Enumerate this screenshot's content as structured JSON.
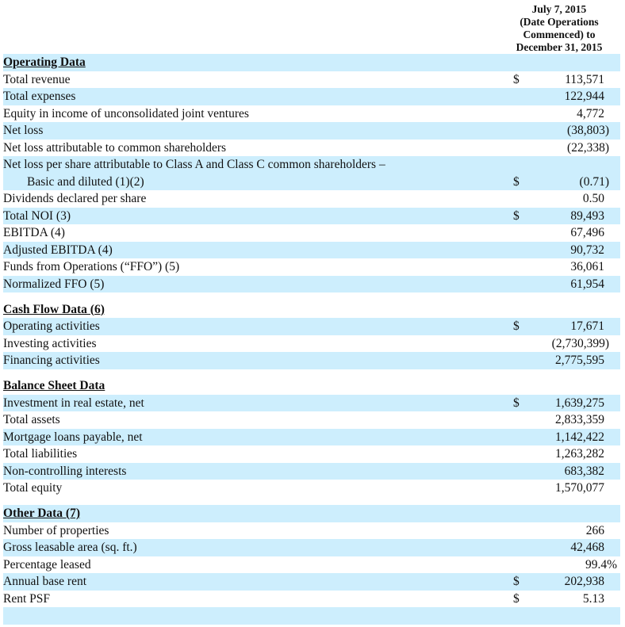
{
  "header": {
    "period_lines": [
      "July 7, 2015",
      "(Date Operations",
      "Commenced) to",
      "December 31, 2015"
    ]
  },
  "sections": [
    {
      "title": "Operating Data",
      "shaded": true,
      "rows": [
        {
          "label": "Total revenue",
          "currency": "$",
          "value": "113,571",
          "shaded": false
        },
        {
          "label": "Total expenses",
          "value": "122,944",
          "shaded": true
        },
        {
          "label": "Equity in income of unconsolidated joint ventures",
          "value": "4,772",
          "shaded": false
        },
        {
          "label": "Net loss",
          "value": "(38,803)",
          "shaded": true
        },
        {
          "label": "Net loss attributable to common shareholders",
          "value": "(22,338)",
          "shaded": false
        },
        {
          "label": "Net loss per share attributable to Class A and Class C common shareholders –",
          "label2": "Basic and diluted (1)(2)",
          "currency": "$",
          "value": "(0.71)",
          "shaded": true
        },
        {
          "label": "Dividends declared per share",
          "value": "0.50",
          "shaded": false
        },
        {
          "label": "Total NOI (3)",
          "currency": "$",
          "value": "89,493",
          "shaded": true
        },
        {
          "label": "EBITDA (4)",
          "value": "67,496",
          "shaded": false
        },
        {
          "label": "Adjusted EBITDA (4)",
          "value": "90,732",
          "shaded": true
        },
        {
          "label": "Funds from Operations (“FFO”) (5)",
          "value": "36,061",
          "shaded": false
        },
        {
          "label": "Normalized FFO (5)",
          "value": "61,954",
          "shaded": true
        }
      ]
    },
    {
      "title": "Cash Flow Data (6)",
      "shaded": false,
      "rows": [
        {
          "label": "Operating activities",
          "currency": "$",
          "value": "17,671",
          "shaded": true
        },
        {
          "label": "Investing activities",
          "value": "(2,730,399)",
          "shaded": false
        },
        {
          "label": "Financing activities",
          "value": "2,775,595",
          "shaded": true
        }
      ]
    },
    {
      "title": "Balance Sheet Data",
      "shaded": false,
      "rows": [
        {
          "label": "Investment in real estate, net",
          "currency": "$",
          "value": "1,639,275",
          "shaded": true
        },
        {
          "label": "Total assets",
          "value": "2,833,359",
          "shaded": false
        },
        {
          "label": "Mortgage loans payable, net",
          "value": "1,142,422",
          "shaded": true
        },
        {
          "label": "Total liabilities",
          "value": "1,263,282",
          "shaded": false
        },
        {
          "label": "Non-controlling interests",
          "value": "683,382",
          "shaded": true
        },
        {
          "label": "Total equity",
          "value": "1,570,077",
          "shaded": false
        }
      ]
    },
    {
      "title": "Other Data (7)",
      "shaded": true,
      "rows": [
        {
          "label": "Number of properties",
          "value": "266",
          "shaded": false
        },
        {
          "label": "Gross leasable area (sq. ft.)",
          "value": "42,468",
          "shaded": true
        },
        {
          "label": "Percentage leased",
          "value": "99.4%",
          "shaded": false
        },
        {
          "label": "Annual base rent",
          "currency": "$",
          "value": "202,938",
          "shaded": true
        },
        {
          "label": "Rent PSF",
          "currency": "$",
          "value": "5.13",
          "shaded": false
        },
        {
          "label": "",
          "value": "",
          "shaded": true
        }
      ]
    }
  ]
}
